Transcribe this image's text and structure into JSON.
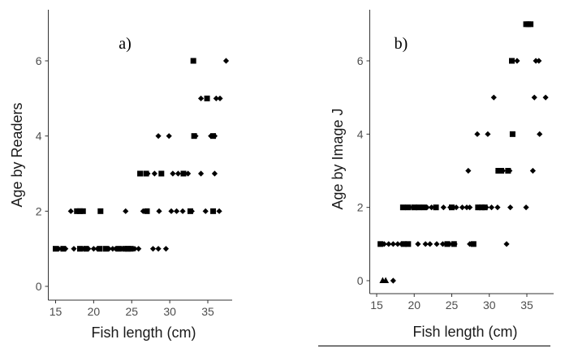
{
  "chart_data": [
    {
      "type": "scatter",
      "panel_label": "a)",
      "xlabel": "Fish length (cm)",
      "ylabel": "Age by Readers",
      "xlim": [
        14.5,
        38
      ],
      "ylim": [
        -0.3,
        7.3
      ],
      "xticks": [
        15,
        20,
        25,
        30,
        35
      ],
      "yticks": [
        0,
        2,
        4,
        6
      ],
      "grid": false,
      "legend": "none",
      "marker_color": "#000000",
      "series": [
        {
          "marker": "diamond",
          "points": [
            [
              15.4,
              1
            ],
            [
              15.8,
              1
            ],
            [
              16.3,
              1
            ],
            [
              17.4,
              1
            ],
            [
              18.7,
              1
            ],
            [
              19.3,
              1
            ],
            [
              20.0,
              1
            ],
            [
              20.5,
              1
            ],
            [
              22.0,
              1
            ],
            [
              22.5,
              1
            ],
            [
              22.9,
              1
            ],
            [
              23.6,
              1
            ],
            [
              25.4,
              1
            ],
            [
              25.9,
              1
            ],
            [
              27.8,
              1
            ],
            [
              28.5,
              1
            ],
            [
              29.5,
              1
            ],
            [
              17.0,
              2
            ],
            [
              24.2,
              2
            ],
            [
              26.5,
              2
            ],
            [
              28.6,
              2
            ],
            [
              30.2,
              2
            ],
            [
              30.9,
              2
            ],
            [
              31.7,
              2
            ],
            [
              32.9,
              2
            ],
            [
              34.7,
              2
            ],
            [
              36.5,
              2
            ],
            [
              27.1,
              3
            ],
            [
              28.0,
              3
            ],
            [
              30.4,
              3
            ],
            [
              31.1,
              3
            ],
            [
              32.4,
              3
            ],
            [
              34.1,
              3
            ],
            [
              35.9,
              3
            ],
            [
              28.5,
              4
            ],
            [
              29.9,
              4
            ],
            [
              33.4,
              4
            ],
            [
              35.4,
              4
            ],
            [
              35.9,
              4
            ],
            [
              34.1,
              5
            ],
            [
              36.1,
              5
            ],
            [
              36.6,
              5
            ],
            [
              37.4,
              6
            ]
          ]
        },
        {
          "marker": "square",
          "points": [
            [
              15.0,
              1
            ],
            [
              16.0,
              1
            ],
            [
              18.2,
              1
            ],
            [
              19.0,
              1
            ],
            [
              20.8,
              1
            ],
            [
              21.6,
              1
            ],
            [
              23.3,
              1
            ],
            [
              24.1,
              1
            ],
            [
              24.5,
              1
            ],
            [
              24.9,
              1
            ],
            [
              17.8,
              2
            ],
            [
              18.2,
              2
            ],
            [
              18.6,
              2
            ],
            [
              20.9,
              2
            ],
            [
              27.0,
              2
            ],
            [
              32.7,
              2
            ],
            [
              35.7,
              2
            ],
            [
              26.1,
              3
            ],
            [
              26.9,
              3
            ],
            [
              28.9,
              3
            ],
            [
              31.8,
              3
            ],
            [
              33.2,
              4
            ],
            [
              35.7,
              4
            ],
            [
              34.9,
              5
            ],
            [
              33.1,
              6
            ]
          ]
        }
      ]
    },
    {
      "type": "scatter",
      "panel_label": "b)",
      "xlabel": "Fish length (cm)",
      "ylabel": "Age by Image J",
      "xlim": [
        14.5,
        38.3
      ],
      "ylim": [
        -0.3,
        7.3
      ],
      "xticks": [
        15,
        20,
        25,
        30,
        35
      ],
      "yticks": [
        0,
        2,
        4,
        6
      ],
      "grid": false,
      "legend": "none",
      "marker_color": "#000000",
      "series": [
        {
          "marker": "diamond",
          "points": [
            [
              16.0,
              1
            ],
            [
              16.6,
              1
            ],
            [
              17.2,
              1
            ],
            [
              17.8,
              1
            ],
            [
              18.3,
              1
            ],
            [
              18.9,
              1
            ],
            [
              20.5,
              1
            ],
            [
              21.5,
              1
            ],
            [
              22.1,
              1
            ],
            [
              23.0,
              1
            ],
            [
              23.8,
              1
            ],
            [
              24.7,
              1
            ],
            [
              25.4,
              1
            ],
            [
              27.4,
              1
            ],
            [
              32.3,
              1
            ],
            [
              19.8,
              2
            ],
            [
              21.7,
              2
            ],
            [
              22.3,
              2
            ],
            [
              22.8,
              2
            ],
            [
              23.9,
              2
            ],
            [
              24.8,
              2
            ],
            [
              25.6,
              2
            ],
            [
              26.4,
              2
            ],
            [
              27.0,
              2
            ],
            [
              27.4,
              2
            ],
            [
              28.5,
              2
            ],
            [
              29.6,
              2
            ],
            [
              30.3,
              2
            ],
            [
              31.1,
              2
            ],
            [
              32.8,
              2
            ],
            [
              34.9,
              2
            ],
            [
              27.2,
              3
            ],
            [
              31.2,
              3
            ],
            [
              31.8,
              3
            ],
            [
              32.7,
              3
            ],
            [
              35.8,
              3
            ],
            [
              28.4,
              4
            ],
            [
              29.8,
              4
            ],
            [
              36.7,
              4
            ],
            [
              30.6,
              5
            ],
            [
              36.0,
              5
            ],
            [
              37.5,
              5
            ],
            [
              33.7,
              6
            ],
            [
              36.2,
              6
            ],
            [
              36.6,
              6
            ],
            [
              17.2,
              0
            ]
          ]
        },
        {
          "marker": "square",
          "points": [
            [
              15.5,
              1
            ],
            [
              18.6,
              1
            ],
            [
              19.2,
              1
            ],
            [
              24.4,
              1
            ],
            [
              25.3,
              1
            ],
            [
              27.9,
              1
            ],
            [
              18.5,
              2
            ],
            [
              19.2,
              2
            ],
            [
              20.0,
              2
            ],
            [
              20.6,
              2
            ],
            [
              21.3,
              2
            ],
            [
              22.9,
              2
            ],
            [
              25.0,
              2
            ],
            [
              28.5,
              2
            ],
            [
              29.0,
              2
            ],
            [
              29.4,
              2
            ],
            [
              31.2,
              3
            ],
            [
              31.6,
              3
            ],
            [
              32.5,
              3
            ],
            [
              33.1,
              4
            ],
            [
              33.0,
              6
            ],
            [
              34.9,
              7
            ],
            [
              35.2,
              7
            ],
            [
              35.5,
              7
            ]
          ]
        },
        {
          "marker": "triangle",
          "points": [
            [
              15.8,
              0
            ],
            [
              16.2,
              0
            ]
          ]
        }
      ]
    }
  ]
}
